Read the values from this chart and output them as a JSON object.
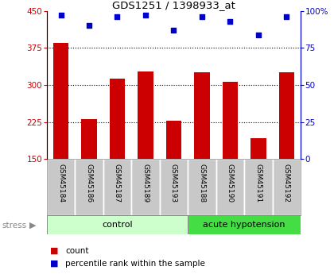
{
  "title": "GDS1251 / 1398933_at",
  "samples": [
    "GSM45184",
    "GSM45186",
    "GSM45187",
    "GSM45189",
    "GSM45193",
    "GSM45188",
    "GSM45190",
    "GSM45191",
    "GSM45192"
  ],
  "counts": [
    385,
    230,
    312,
    328,
    228,
    325,
    307,
    192,
    325
  ],
  "percentiles": [
    97,
    90,
    96,
    97,
    87,
    96,
    93,
    84,
    96
  ],
  "ylim_left": [
    150,
    450
  ],
  "yticks_left": [
    150,
    225,
    300,
    375,
    450
  ],
  "ylim_right": [
    0,
    100
  ],
  "yticks_right": [
    0,
    25,
    50,
    75,
    100
  ],
  "bar_color": "#cc0000",
  "dot_color": "#0000cc",
  "bar_bottom": 150,
  "groups": [
    {
      "label": "control",
      "start": 0,
      "end": 5,
      "color": "#ccffcc"
    },
    {
      "label": "acute hypotension",
      "start": 5,
      "end": 9,
      "color": "#44dd44"
    }
  ],
  "stress_label": "stress",
  "legend_items": [
    {
      "label": "count",
      "color": "#cc0000"
    },
    {
      "label": "percentile rank within the sample",
      "color": "#0000cc"
    }
  ],
  "xlabel_area_color": "#c8c8c8"
}
